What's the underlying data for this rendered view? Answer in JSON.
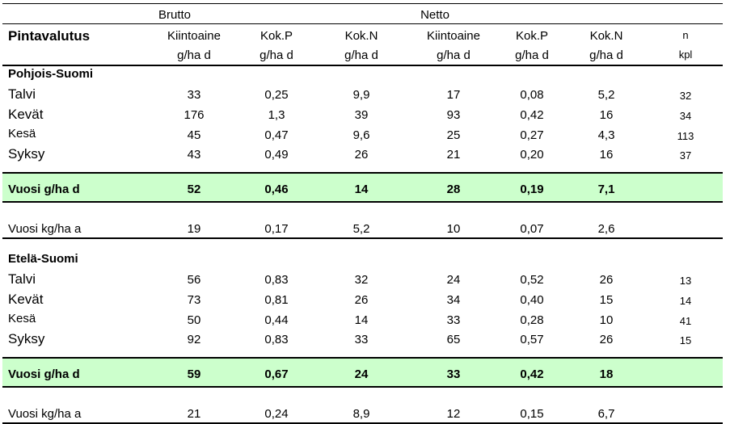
{
  "header": {
    "group_brutto": "Brutto",
    "group_netto": "Netto",
    "title": "Pintavalutus",
    "columns": [
      {
        "line1": "Kiintoaine",
        "line2": "g/ha d"
      },
      {
        "line1": "Kok.P",
        "line2": "g/ha d"
      },
      {
        "line1": "Kok.N",
        "line2": "g/ha d"
      },
      {
        "line1": "Kiintoaine",
        "line2": "g/ha d"
      },
      {
        "line1": "Kok.P",
        "line2": "g/ha d"
      },
      {
        "line1": "Kok.N",
        "line2": "g/ha d"
      },
      {
        "line1": "n",
        "line2": "kpl"
      }
    ]
  },
  "sections": [
    {
      "title": "Pohjois-Suomi",
      "seasons": [
        {
          "label": "Talvi",
          "values": [
            "33",
            "0,25",
            "9,9",
            "17",
            "0,08",
            "5,2"
          ],
          "n": "32"
        },
        {
          "label": "Kevät",
          "values": [
            "176",
            "1,3",
            "39",
            "93",
            "0,42",
            "16"
          ],
          "n": "34"
        },
        {
          "label": "Kesä",
          "values": [
            "45",
            "0,47",
            "9,6",
            "25",
            "0,27",
            "4,3"
          ],
          "n": "113"
        },
        {
          "label": "Syksy",
          "values": [
            "43",
            "0,49",
            "26",
            "21",
            "0,20",
            "16"
          ],
          "n": "37"
        }
      ],
      "year_day": {
        "label": "Vuosi g/ha d",
        "values": [
          "52",
          "0,46",
          "14",
          "28",
          "0,19",
          "7,1"
        ]
      },
      "year_annual": {
        "label": "Vuosi kg/ha a",
        "values": [
          "19",
          "0,17",
          "5,2",
          "10",
          "0,07",
          "2,6"
        ]
      }
    },
    {
      "title": "Etelä-Suomi",
      "seasons": [
        {
          "label": "Talvi",
          "values": [
            "56",
            "0,83",
            "32",
            "24",
            "0,52",
            "26"
          ],
          "n": "13"
        },
        {
          "label": "Kevät",
          "values": [
            "73",
            "0,81",
            "26",
            "34",
            "0,40",
            "15"
          ],
          "n": "14"
        },
        {
          "label": "Kesä",
          "values": [
            "50",
            "0,44",
            "14",
            "33",
            "0,28",
            "10"
          ],
          "n": "41"
        },
        {
          "label": "Syksy",
          "values": [
            "92",
            "0,83",
            "33",
            "65",
            "0,57",
            "26"
          ],
          "n": "15"
        }
      ],
      "year_day": {
        "label": "Vuosi g/ha d",
        "values": [
          "59",
          "0,67",
          "24",
          "33",
          "0,42",
          "18"
        ]
      },
      "year_annual": {
        "label": "Vuosi kg/ha a",
        "values": [
          "21",
          "0,24",
          "8,9",
          "12",
          "0,15",
          "6,7"
        ]
      }
    }
  ],
  "colors": {
    "highlight": "#ccffcc",
    "rule": "#000000"
  }
}
